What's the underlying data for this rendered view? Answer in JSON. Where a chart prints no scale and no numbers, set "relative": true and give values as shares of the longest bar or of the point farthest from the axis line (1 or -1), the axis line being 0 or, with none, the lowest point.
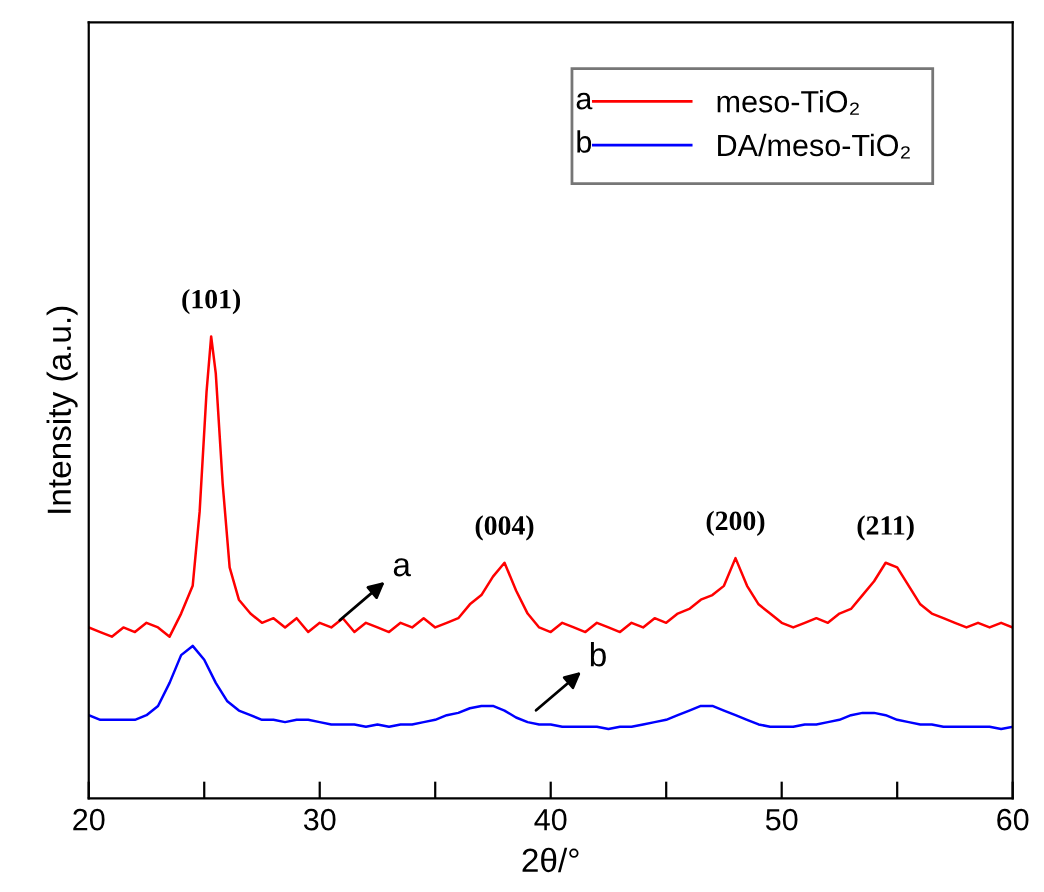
{
  "chart_data": {
    "type": "line",
    "relative": true,
    "xlabel": "2θ/°",
    "ylabel": "Intensity (a.u.)",
    "xlim": [
      20,
      60
    ],
    "xticks": [
      20,
      {
        "value": 25,
        "label": null
      },
      30,
      {
        "value": 35,
        "label": null
      },
      40,
      {
        "value": 45,
        "label": null
      },
      50,
      {
        "value": 55,
        "label": null
      },
      60
    ],
    "tick_labels": "x",
    "grid": false,
    "legend": "top right",
    "marker": "none",
    "line_style": "solid",
    "series": [
      {
        "name": "meso-TiO₂",
        "color": "#ff0000",
        "x": [
          20,
          20.5,
          21,
          21.5,
          22,
          22.5,
          23,
          23.5,
          24,
          24.5,
          24.8,
          25.1,
          25.3,
          25.5,
          25.8,
          26.1,
          26.5,
          27,
          27.5,
          28,
          28.5,
          29,
          29.5,
          30,
          30.5,
          31,
          31.5,
          32,
          32.5,
          33,
          33.5,
          34,
          34.5,
          35,
          35.5,
          36,
          36.5,
          37,
          37.5,
          38,
          38.5,
          39,
          39.5,
          40,
          40.5,
          41,
          41.5,
          42,
          42.5,
          43,
          43.5,
          44,
          44.5,
          45,
          45.5,
          46,
          46.5,
          47,
          47.5,
          48,
          48.5,
          49,
          49.5,
          50,
          50.5,
          51,
          51.5,
          52,
          52.5,
          53,
          53.5,
          54,
          54.5,
          55,
          55.5,
          56,
          56.5,
          57,
          57.5,
          58,
          58.5,
          59,
          59.5,
          60
        ],
        "values": [
          0.37,
          0.36,
          0.35,
          0.37,
          0.36,
          0.38,
          0.37,
          0.35,
          0.4,
          0.46,
          0.62,
          0.88,
          1.0,
          0.92,
          0.68,
          0.5,
          0.43,
          0.4,
          0.38,
          0.39,
          0.37,
          0.39,
          0.36,
          0.38,
          0.37,
          0.39,
          0.36,
          0.38,
          0.37,
          0.36,
          0.38,
          0.37,
          0.39,
          0.37,
          0.38,
          0.39,
          0.42,
          0.44,
          0.48,
          0.51,
          0.45,
          0.4,
          0.37,
          0.36,
          0.38,
          0.37,
          0.36,
          0.38,
          0.37,
          0.36,
          0.38,
          0.37,
          0.39,
          0.38,
          0.4,
          0.41,
          0.43,
          0.44,
          0.46,
          0.52,
          0.46,
          0.42,
          0.4,
          0.38,
          0.37,
          0.38,
          0.39,
          0.38,
          0.4,
          0.41,
          0.44,
          0.47,
          0.51,
          0.5,
          0.46,
          0.42,
          0.4,
          0.39,
          0.38,
          0.37,
          0.38,
          0.37,
          0.38,
          0.37
        ]
      },
      {
        "name": "DA/meso-TiO₂",
        "color": "#0000ff",
        "x": [
          20,
          20.5,
          21,
          21.5,
          22,
          22.5,
          23,
          23.5,
          24,
          24.5,
          25,
          25.5,
          26,
          26.5,
          27,
          27.5,
          28,
          28.5,
          29,
          29.5,
          30,
          30.5,
          31,
          31.5,
          32,
          32.5,
          33,
          33.5,
          34,
          34.5,
          35,
          35.5,
          36,
          36.5,
          37,
          37.5,
          38,
          38.5,
          39,
          39.5,
          40,
          40.5,
          41,
          41.5,
          42,
          42.5,
          43,
          43.5,
          44,
          44.5,
          45,
          45.5,
          46,
          46.5,
          47,
          47.5,
          48,
          48.5,
          49,
          49.5,
          50,
          50.5,
          51,
          51.5,
          52,
          52.5,
          53,
          53.5,
          54,
          54.5,
          55,
          55.5,
          56,
          56.5,
          57,
          57.5,
          58,
          58.5,
          59,
          59.5,
          60
        ],
        "values": [
          0.18,
          0.17,
          0.17,
          0.17,
          0.17,
          0.18,
          0.2,
          0.25,
          0.31,
          0.33,
          0.3,
          0.25,
          0.21,
          0.19,
          0.18,
          0.17,
          0.17,
          0.165,
          0.17,
          0.17,
          0.165,
          0.16,
          0.16,
          0.16,
          0.155,
          0.16,
          0.155,
          0.16,
          0.16,
          0.165,
          0.17,
          0.18,
          0.185,
          0.195,
          0.2,
          0.2,
          0.19,
          0.175,
          0.165,
          0.16,
          0.16,
          0.155,
          0.155,
          0.155,
          0.155,
          0.15,
          0.155,
          0.155,
          0.16,
          0.165,
          0.17,
          0.18,
          0.19,
          0.2,
          0.2,
          0.19,
          0.18,
          0.17,
          0.16,
          0.155,
          0.155,
          0.155,
          0.16,
          0.16,
          0.165,
          0.17,
          0.18,
          0.185,
          0.185,
          0.18,
          0.17,
          0.165,
          0.16,
          0.16,
          0.155,
          0.155,
          0.155,
          0.155,
          0.155,
          0.15,
          0.155
        ]
      }
    ],
    "annotations": [
      {
        "text": "(101)",
        "x": 25.3,
        "y": 1.0
      },
      {
        "text": "(004)",
        "x": 38,
        "y": 0.51
      },
      {
        "text": "(200)",
        "x": 48,
        "y": 0.52
      },
      {
        "text": "(211)",
        "x": 54.5,
        "y": 0.51
      },
      {
        "text": "a",
        "x": 30.5,
        "y": 0.37
      },
      {
        "text": "b",
        "x": 39,
        "y": 0.175
      }
    ]
  }
}
